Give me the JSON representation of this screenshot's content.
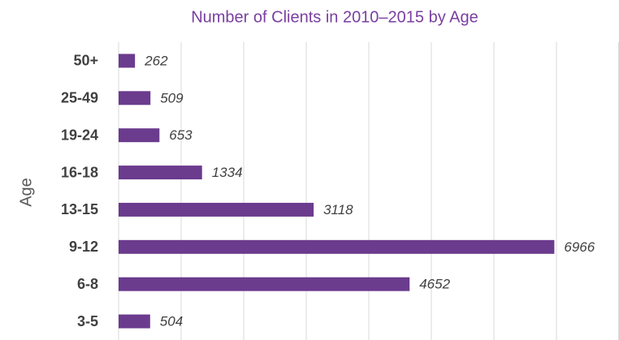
{
  "chart_data": {
    "type": "bar",
    "orientation": "horizontal",
    "title": "Number of Clients in 2010–2015 by Age",
    "y_label": "Age",
    "categories": [
      "50+",
      "25-49",
      "19-24",
      "16-18",
      "13-15",
      "9-12",
      "6-8",
      "3-5"
    ],
    "values": [
      262,
      509,
      653,
      1334,
      3118,
      6966,
      4652,
      504
    ],
    "color": "#6b3b8e",
    "xlim": [
      0,
      8000
    ],
    "xticks": [
      0,
      1000,
      2000,
      3000,
      4000,
      5000,
      6000,
      7000,
      8000
    ],
    "grid": true
  }
}
